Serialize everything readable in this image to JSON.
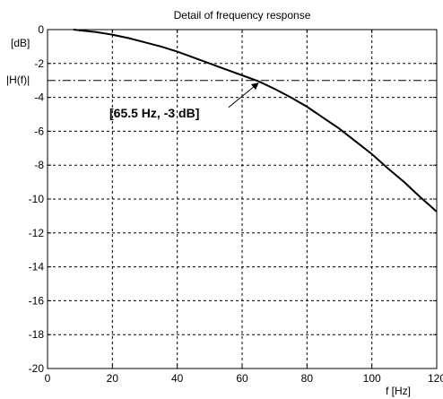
{
  "chart_data": {
    "type": "line",
    "title": "Detail of frequency response",
    "xlabel": "f [Hz]",
    "ylabel": "|H(f)|",
    "yunit": "[dB]",
    "xlim": [
      0,
      120
    ],
    "ylim": [
      -20,
      0
    ],
    "xticks": [
      0,
      20,
      40,
      60,
      80,
      100,
      120
    ],
    "yticks": [
      0,
      -2,
      -4,
      -6,
      -8,
      -10,
      -12,
      -14,
      -16,
      -18,
      -20
    ],
    "grid": true,
    "series": [
      {
        "x": [
          8,
          10,
          15,
          20,
          25,
          30,
          35,
          40,
          45,
          50,
          55,
          60,
          65,
          70,
          75,
          80,
          85,
          90,
          95,
          100,
          105,
          110,
          115,
          118,
          120
        ],
        "y": [
          0,
          -0.05,
          -0.15,
          -0.3,
          -0.5,
          -0.75,
          -1.0,
          -1.3,
          -1.65,
          -2.0,
          -2.35,
          -2.7,
          -3.05,
          -3.5,
          -4.0,
          -4.55,
          -5.2,
          -5.85,
          -6.6,
          -7.35,
          -8.2,
          -9.0,
          -9.9,
          -10.4,
          -10.75
        ],
        "style": "solid"
      }
    ],
    "reference_lines": [
      {
        "y": -3,
        "style": "dashdot"
      }
    ],
    "annotations": [
      {
        "text": "[65.5 Hz, -3 dB]",
        "point": [
          65.5,
          -3
        ]
      }
    ]
  }
}
